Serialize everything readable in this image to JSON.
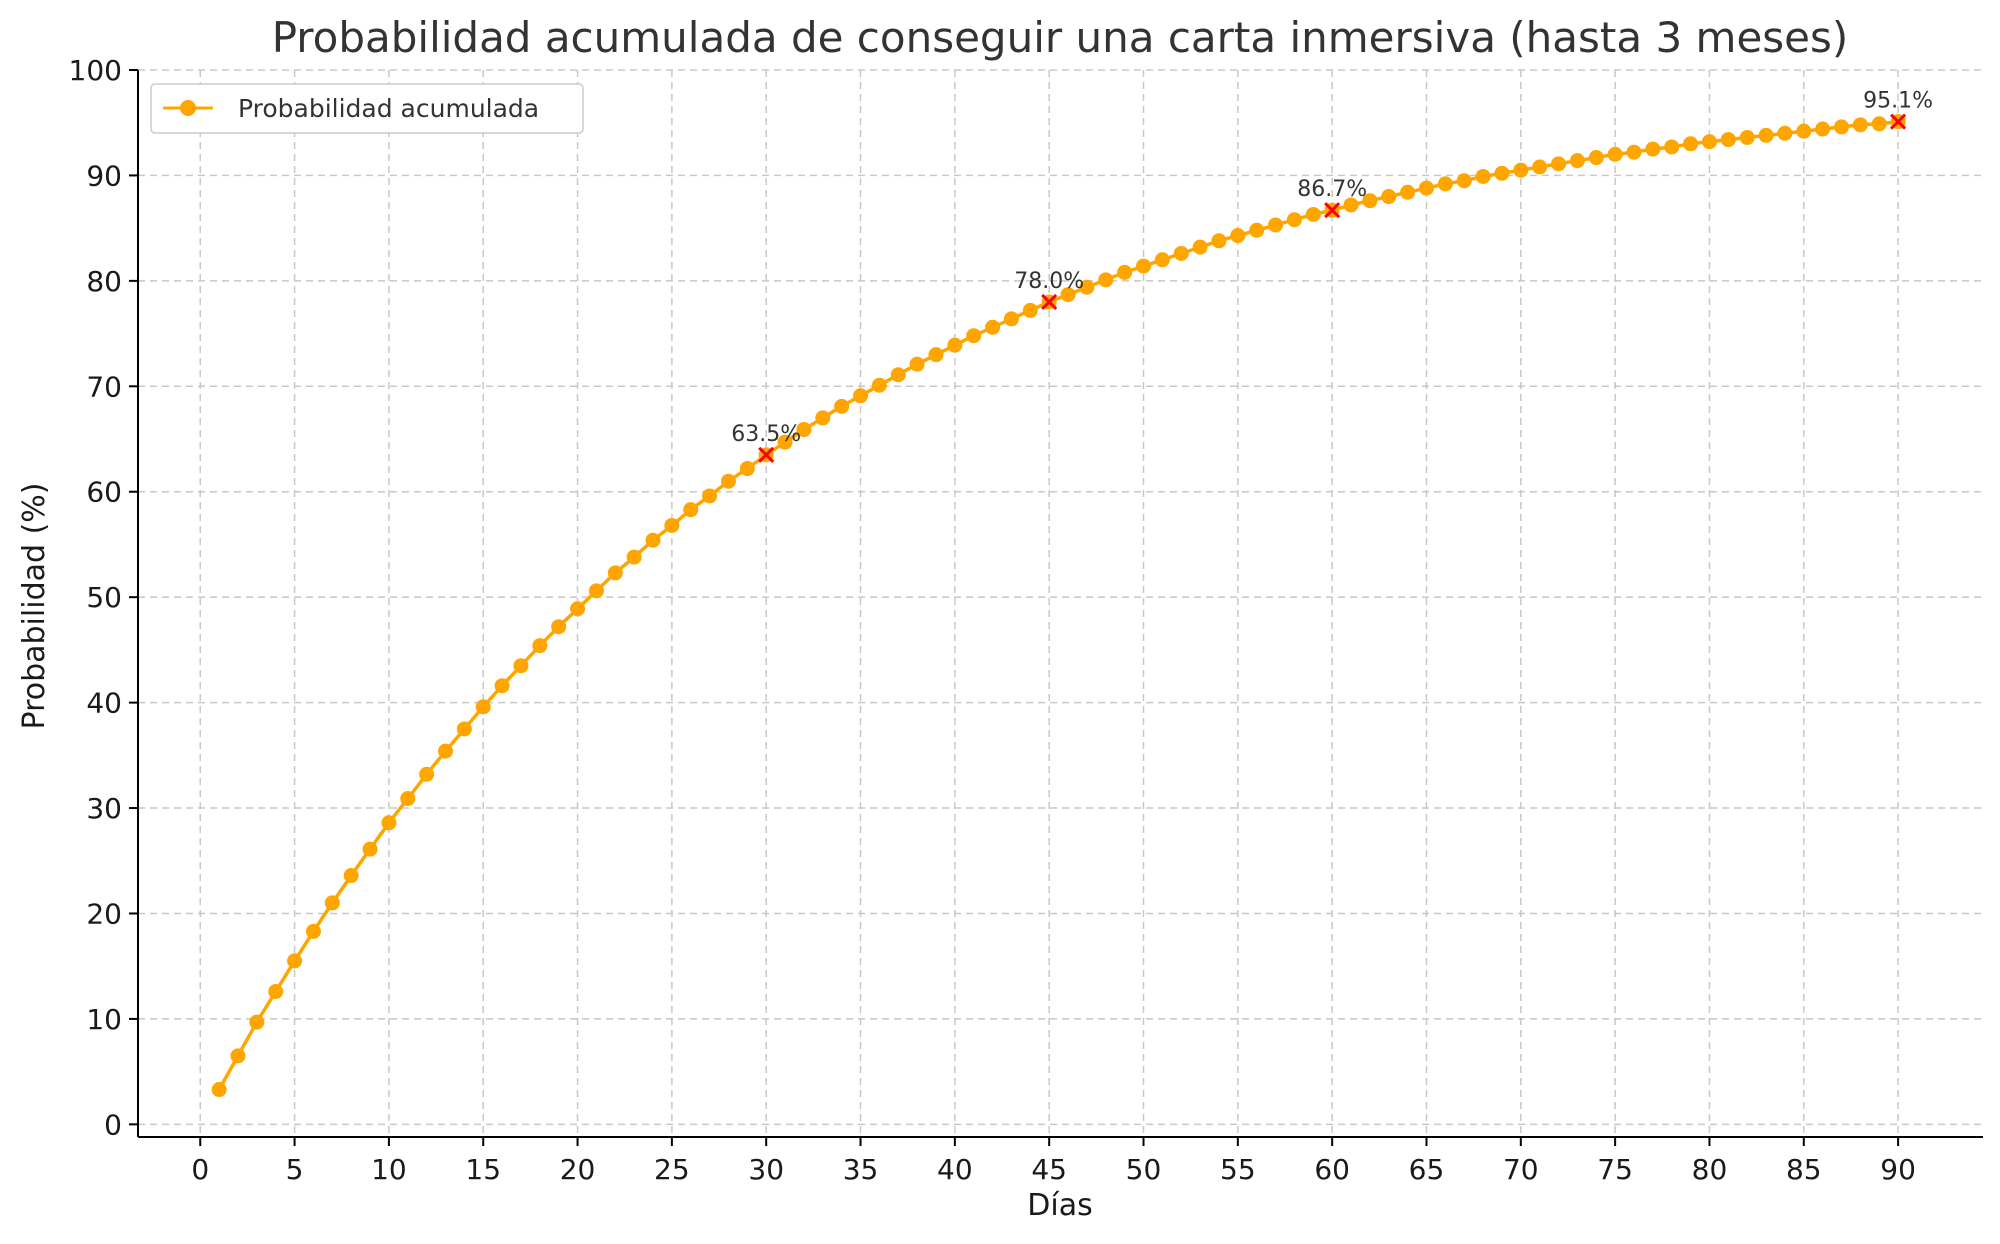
{
  "chart_data": {
    "type": "line",
    "title": "Probabilidad acumulada de conseguir una carta inmersiva (hasta 3 meses)",
    "xlabel": "Días",
    "ylabel": "Probabilidad (%)",
    "xlim": [
      -3.3,
      94.5
    ],
    "ylim": [
      -1.2,
      100
    ],
    "xticks": [
      0,
      5,
      10,
      15,
      20,
      25,
      30,
      35,
      40,
      45,
      50,
      55,
      60,
      65,
      70,
      75,
      80,
      85,
      90
    ],
    "yticks": [
      0,
      10,
      20,
      30,
      40,
      50,
      60,
      70,
      80,
      90,
      100
    ],
    "grid": true,
    "legend_position": "top-left",
    "colors": {
      "series": "#FFA500",
      "highlight": "#FF0000"
    },
    "series": [
      {
        "name": "Probabilidad acumulada",
        "marker": "circle",
        "x": [
          1,
          2,
          3,
          4,
          5,
          6,
          7,
          8,
          9,
          10,
          11,
          12,
          13,
          14,
          15,
          16,
          17,
          18,
          19,
          20,
          21,
          22,
          23,
          24,
          25,
          26,
          27,
          28,
          29,
          30,
          31,
          32,
          33,
          34,
          35,
          36,
          37,
          38,
          39,
          40,
          41,
          42,
          43,
          44,
          45,
          46,
          47,
          48,
          49,
          50,
          51,
          52,
          53,
          54,
          55,
          56,
          57,
          58,
          59,
          60,
          61,
          62,
          63,
          64,
          65,
          66,
          67,
          68,
          69,
          70,
          71,
          72,
          73,
          74,
          75,
          76,
          77,
          78,
          79,
          80,
          81,
          82,
          83,
          84,
          85,
          86,
          87,
          88,
          89,
          90
        ],
        "y": [
          3.3,
          6.5,
          9.7,
          12.6,
          15.5,
          18.3,
          21.0,
          23.6,
          26.1,
          28.6,
          30.9,
          33.2,
          35.4,
          37.5,
          39.6,
          41.6,
          43.5,
          45.4,
          47.2,
          48.9,
          50.6,
          52.3,
          53.8,
          55.4,
          56.8,
          58.3,
          59.6,
          61.0,
          62.2,
          63.5,
          64.7,
          65.9,
          67.0,
          68.1,
          69.1,
          70.1,
          71.1,
          72.1,
          73.0,
          73.9,
          74.8,
          75.6,
          76.4,
          77.2,
          78.0,
          78.7,
          79.4,
          80.1,
          80.8,
          81.4,
          82.0,
          82.6,
          83.2,
          83.8,
          84.3,
          84.8,
          85.3,
          85.8,
          86.3,
          86.7,
          87.2,
          87.6,
          88.0,
          88.4,
          88.8,
          89.2,
          89.5,
          89.9,
          90.2,
          90.5,
          90.8,
          91.1,
          91.4,
          91.7,
          92.0,
          92.2,
          92.5,
          92.7,
          93.0,
          93.2,
          93.4,
          93.6,
          93.8,
          94.0,
          94.2,
          94.4,
          94.6,
          94.8,
          94.9,
          95.1
        ]
      }
    ],
    "annotations": [
      {
        "x": 30,
        "y": 63.5,
        "label": "63.5%"
      },
      {
        "x": 45,
        "y": 78.0,
        "label": "78.0%"
      },
      {
        "x": 60,
        "y": 86.7,
        "label": "86.7%"
      },
      {
        "x": 90,
        "y": 95.1,
        "label": "95.1%"
      }
    ]
  }
}
